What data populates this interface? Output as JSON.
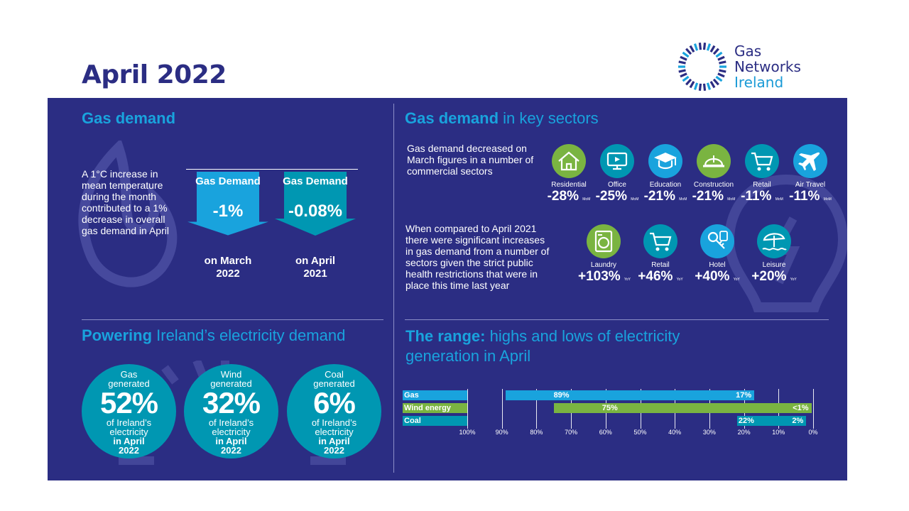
{
  "page_title": "April 2022",
  "logo": {
    "line1": "Gas",
    "line2": "Networks",
    "line3": "Ireland"
  },
  "gas_demand": {
    "heading": "Gas demand",
    "text": "A 1°C increase in mean temperature during the month contributed to a 1% decrease in overall gas demand in April",
    "arrows": [
      {
        "label": "Gas Demand",
        "value": "-1%",
        "caption_1": "on March",
        "caption_2": "2022",
        "color": "#19a3dd"
      },
      {
        "label": "Gas Demand",
        "value": "-0.08%",
        "caption_1": "on April",
        "caption_2": "2021",
        "color": "#0097b2"
      }
    ]
  },
  "key_sectors": {
    "heading_bold": "Gas demand",
    "heading_rest": " in key sectors",
    "text_mom": "Gas demand decreased on March figures in a number of commercial sectors",
    "text_yoy": "When compared to April 2021 there were significant increases in gas demand from a number of sectors given the strict public health restrictions that were in place this time last year",
    "mom": [
      {
        "name": "Residential",
        "value": "-28%",
        "unit": "MoM",
        "icon": "house-icon",
        "color": "#7ab441"
      },
      {
        "name": "Office",
        "value": "-25%",
        "unit": "MoM",
        "icon": "monitor-icon",
        "color": "#0097b2"
      },
      {
        "name": "Education",
        "value": "-21%",
        "unit": "MoM",
        "icon": "graduation-cap-icon",
        "color": "#19a3dd"
      },
      {
        "name": "Construction",
        "value": "-21%",
        "unit": "MoM",
        "icon": "hard-hat-icon",
        "color": "#7ab441"
      },
      {
        "name": "Retail",
        "value": "-11%",
        "unit": "MoM",
        "icon": "shopping-cart-icon",
        "color": "#0097b2"
      },
      {
        "name": "Air Travel",
        "value": "-11%",
        "unit": "MoM",
        "icon": "airplane-icon",
        "color": "#19a3dd"
      }
    ],
    "yoy": [
      {
        "name": "Laundry",
        "value": "+103%",
        "unit": "YoY",
        "icon": "washing-machine-icon",
        "color": "#7ab441"
      },
      {
        "name": "Retail",
        "value": "+46%",
        "unit": "YoY",
        "icon": "shopping-cart-icon",
        "color": "#0097b2"
      },
      {
        "name": "Hotel",
        "value": "+40%",
        "unit": "YoY",
        "icon": "hotel-key-icon",
        "color": "#19a3dd"
      },
      {
        "name": "Leisure",
        "value": "+20%",
        "unit": "YoY",
        "icon": "beach-umbrella-icon",
        "color": "#0097b2"
      }
    ]
  },
  "electricity": {
    "heading_bold": "Powering",
    "heading_rest": " Ireland’s electricity demand",
    "circles": [
      {
        "top_1": "Gas",
        "top_2": "generated",
        "value": "52%",
        "mid_1": "of Ireland’s",
        "mid_2": "electricity",
        "bottom_1": "in April",
        "bottom_2": "2022"
      },
      {
        "top_1": "Wind",
        "top_2": "generated",
        "value": "32%",
        "mid_1": "of Ireland’s",
        "mid_2": "electricity",
        "bottom_1": "in April",
        "bottom_2": "2022"
      },
      {
        "top_1": "Coal",
        "top_2": "generated",
        "value": "6%",
        "mid_1": "of Ireland’s",
        "mid_2": "electricity",
        "bottom_1": "in April",
        "bottom_2": "2022"
      }
    ]
  },
  "range": {
    "heading_bold": "The range:",
    "heading_rest_1": " highs and lows of electricity",
    "heading_rest_2": "generation in April"
  },
  "chart_data": {
    "type": "bar",
    "orientation": "horizontal-range",
    "x_axis": "reversed percentage",
    "xlim": [
      100,
      0
    ],
    "tick_labels": [
      "100%",
      "90%",
      "80%",
      "70%",
      "60%",
      "50%",
      "40%",
      "30%",
      "20%",
      "10%",
      "0%"
    ],
    "categories": [
      "Gas",
      "Wind energy",
      "Coal"
    ],
    "series": [
      {
        "category": "Gas",
        "high": 89,
        "low": 17,
        "high_label": "89%",
        "low_label": "17%",
        "color": "#19a3dd"
      },
      {
        "category": "Wind energy",
        "high": 75,
        "low": 0.5,
        "high_label": "75%",
        "low_label": "<1%",
        "color": "#7ab441"
      },
      {
        "category": "Coal",
        "high": 22,
        "low": 2,
        "high_label": "22%",
        "low_label": "2%",
        "color": "#0097b2"
      }
    ],
    "grid": true
  }
}
